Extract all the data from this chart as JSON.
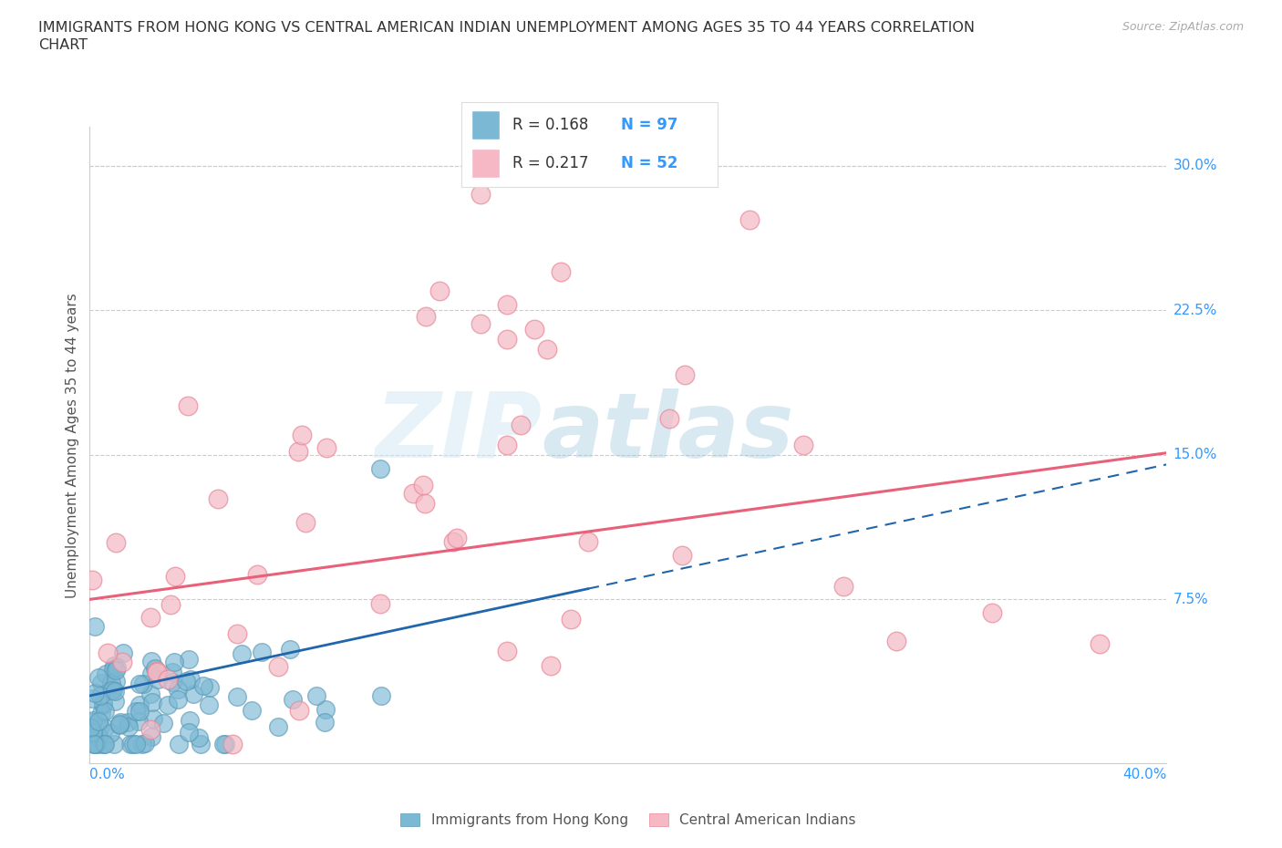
{
  "title_line1": "IMMIGRANTS FROM HONG KONG VS CENTRAL AMERICAN INDIAN UNEMPLOYMENT AMONG AGES 35 TO 44 YEARS CORRELATION",
  "title_line2": "CHART",
  "source": "Source: ZipAtlas.com",
  "ylabel": "Unemployment Among Ages 35 to 44 years",
  "xlim": [
    0.0,
    0.4
  ],
  "ylim": [
    -0.01,
    0.32
  ],
  "yticks": [
    0.0,
    0.075,
    0.15,
    0.225,
    0.3
  ],
  "ytick_labels": [
    "",
    "7.5%",
    "15.0%",
    "22.5%",
    "30.0%"
  ],
  "series1_name": "Immigrants from Hong Kong",
  "series1_color": "#7bb8d4",
  "series1_edge": "#5a9ab8",
  "series1_R": 0.168,
  "series1_N": 97,
  "series2_name": "Central American Indians",
  "series2_color": "#f5b8c4",
  "series2_edge": "#e88898",
  "series2_R": 0.217,
  "series2_N": 52,
  "trend1_color": "#2166ac",
  "trend2_color": "#e8607a",
  "watermark_color": "#c8dff0",
  "background_color": "#ffffff",
  "legend_R1_color": "#333333",
  "legend_N1_color": "#3399ff",
  "legend_R2_color": "#333333",
  "legend_N2_color": "#3399ff",
  "axis_label_color": "#3399ff",
  "ylabel_color": "#555555",
  "title_color": "#333333",
  "source_color": "#aaaaaa"
}
